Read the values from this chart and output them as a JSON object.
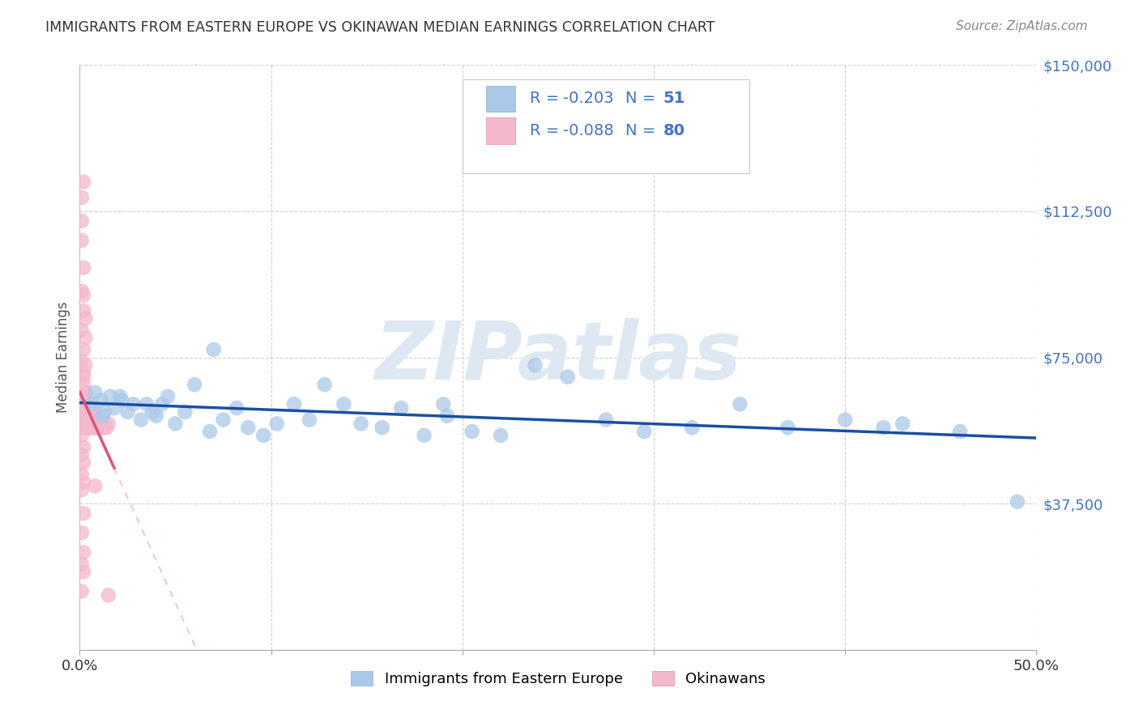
{
  "title": "IMMIGRANTS FROM EASTERN EUROPE VS OKINAWAN MEDIAN EARNINGS CORRELATION CHART",
  "source": "Source: ZipAtlas.com",
  "ylabel": "Median Earnings",
  "xlim": [
    0,
    0.5
  ],
  "ylim": [
    0,
    150000
  ],
  "yticks": [
    0,
    37500,
    75000,
    112500,
    150000
  ],
  "ytick_labels": [
    "",
    "$37,500",
    "$75,000",
    "$112,500",
    "$150,000"
  ],
  "xticks": [
    0.0,
    0.1,
    0.2,
    0.3,
    0.4,
    0.5
  ],
  "xtick_labels": [
    "0.0%",
    "",
    "",
    "",
    "",
    "50.0%"
  ],
  "blue_R": "-0.203",
  "blue_N": "51",
  "pink_R": "-0.088",
  "pink_N": "80",
  "blue_color": "#aac9e8",
  "pink_color": "#f4b8cc",
  "blue_line_color": "#1a4fa0",
  "pink_line_color": "#e05080",
  "watermark": "ZIPatlas",
  "watermark_color": "#dde8f2",
  "background_color": "#ffffff",
  "grid_color": "#d0d0d0",
  "title_color": "#333333",
  "right_label_color": "#4472c4",
  "legend_R_color": "#4472c4",
  "blue_scatter_x": [
    0.006,
    0.008,
    0.011,
    0.013,
    0.016,
    0.018,
    0.021,
    0.025,
    0.028,
    0.032,
    0.035,
    0.038,
    0.04,
    0.043,
    0.046,
    0.05,
    0.055,
    0.06,
    0.068,
    0.075,
    0.082,
    0.088,
    0.096,
    0.103,
    0.112,
    0.12,
    0.128,
    0.138,
    0.147,
    0.158,
    0.168,
    0.18,
    0.192,
    0.205,
    0.22,
    0.238,
    0.255,
    0.275,
    0.295,
    0.32,
    0.345,
    0.37,
    0.4,
    0.43,
    0.46,
    0.49,
    0.012,
    0.022,
    0.07,
    0.19,
    0.42
  ],
  "blue_scatter_y": [
    63000,
    66000,
    64000,
    61000,
    65000,
    62000,
    65000,
    61000,
    63000,
    59000,
    63000,
    61000,
    60000,
    63000,
    65000,
    58000,
    61000,
    68000,
    56000,
    59000,
    62000,
    57000,
    55000,
    58000,
    63000,
    59000,
    68000,
    63000,
    58000,
    57000,
    62000,
    55000,
    60000,
    56000,
    55000,
    73000,
    70000,
    59000,
    56000,
    57000,
    63000,
    57000,
    59000,
    58000,
    56000,
    38000,
    60000,
    64000,
    77000,
    63000,
    57000
  ],
  "pink_scatter_x": [
    0.001,
    0.001,
    0.001,
    0.001,
    0.002,
    0.002,
    0.002,
    0.002,
    0.002,
    0.003,
    0.003,
    0.003,
    0.003,
    0.003,
    0.004,
    0.004,
    0.004,
    0.004,
    0.004,
    0.005,
    0.005,
    0.005,
    0.005,
    0.005,
    0.006,
    0.006,
    0.006,
    0.006,
    0.007,
    0.007,
    0.007,
    0.007,
    0.008,
    0.008,
    0.008,
    0.008,
    0.009,
    0.009,
    0.009,
    0.01,
    0.01,
    0.01,
    0.011,
    0.011,
    0.012,
    0.012,
    0.013,
    0.013,
    0.014,
    0.015,
    0.001,
    0.002,
    0.001,
    0.002,
    0.001,
    0.002,
    0.001,
    0.003,
    0.002,
    0.001,
    0.002,
    0.003,
    0.001,
    0.002,
    0.003,
    0.001,
    0.002,
    0.001,
    0.002,
    0.001,
    0.002,
    0.001,
    0.001,
    0.002,
    0.002,
    0.001,
    0.001,
    0.002,
    0.008,
    0.015
  ],
  "pink_scatter_y": [
    57000,
    61000,
    65000,
    59000,
    63000,
    71000,
    68000,
    59000,
    63000,
    66000,
    73000,
    61000,
    57000,
    59000,
    63000,
    59000,
    57000,
    61000,
    58000,
    57000,
    59000,
    61000,
    57000,
    59000,
    57000,
    59000,
    61000,
    57000,
    59000,
    61000,
    57000,
    59000,
    57000,
    59000,
    61000,
    57000,
    58000,
    57000,
    59000,
    57000,
    58000,
    57000,
    58000,
    57000,
    58000,
    57000,
    58000,
    57000,
    57000,
    58000,
    92000,
    87000,
    82000,
    77000,
    116000,
    120000,
    110000,
    85000,
    91000,
    74000,
    70000,
    66000,
    105000,
    98000,
    80000,
    55000,
    52000,
    50000,
    48000,
    45000,
    43000,
    41000,
    30000,
    25000,
    20000,
    15000,
    22000,
    35000,
    42000,
    14000
  ]
}
